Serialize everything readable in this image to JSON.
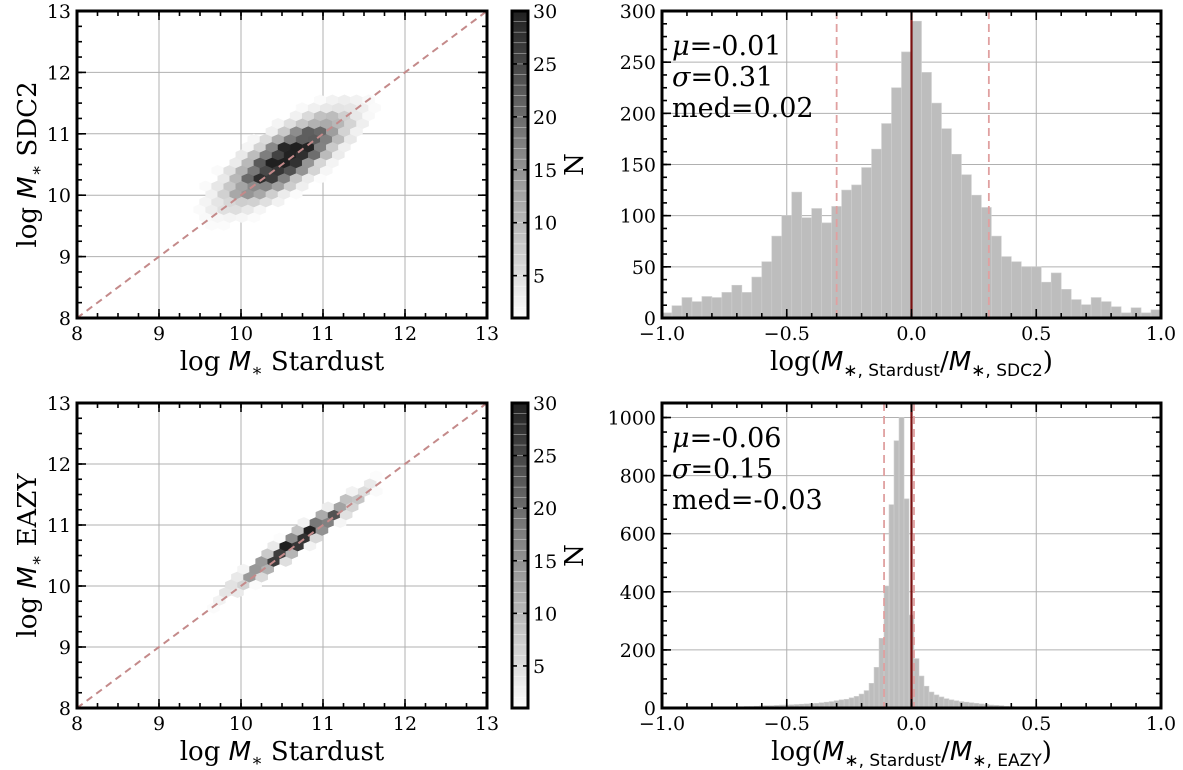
{
  "chart_data": [
    {
      "id": "tl",
      "type": "heatmap",
      "subtype": "hexbin",
      "xlabel": "log M_* Stardust",
      "ylabel": "log M_* SDC2",
      "xlim": [
        8,
        13
      ],
      "ylim": [
        8,
        13
      ],
      "xticks": [
        8,
        9,
        10,
        11,
        12,
        13
      ],
      "yticks": [
        8,
        9,
        10,
        11,
        12,
        13
      ],
      "grid": true,
      "one_to_one_line": {
        "color": "#c48a8a",
        "style": "dashed"
      },
      "cmap": "Greys",
      "clim": [
        1,
        30
      ],
      "colorbar": {
        "label": "N",
        "ticks": [
          5,
          10,
          15,
          20,
          25,
          30
        ]
      },
      "distribution": {
        "center": [
          10.55,
          10.6
        ],
        "major_dispersion": 0.55,
        "minor_dispersion": 0.2,
        "extent": {
          "x": [
            9.2,
            11.7
          ],
          "y": [
            9.0,
            11.6
          ]
        },
        "peak_count": 30
      }
    },
    {
      "id": "tr",
      "type": "bar",
      "subtype": "histogram",
      "xlabel": "log(M_{*, Stardust}/M_{*, SDC2})",
      "ylabel": "",
      "xlim": [
        -1.0,
        1.0
      ],
      "ylim": [
        0,
        300
      ],
      "xticks": [
        -1.0,
        -0.5,
        0.0,
        0.5,
        1.0
      ],
      "yticks": [
        0,
        50,
        100,
        150,
        200,
        250,
        300
      ],
      "grid": true,
      "bin_width": 0.04,
      "x": [
        -0.98,
        -0.94,
        -0.9,
        -0.86,
        -0.82,
        -0.78,
        -0.74,
        -0.7,
        -0.66,
        -0.62,
        -0.58,
        -0.54,
        -0.5,
        -0.46,
        -0.42,
        -0.38,
        -0.34,
        -0.3,
        -0.26,
        -0.22,
        -0.18,
        -0.14,
        -0.1,
        -0.06,
        -0.02,
        0.02,
        0.06,
        0.1,
        0.14,
        0.18,
        0.22,
        0.26,
        0.3,
        0.34,
        0.38,
        0.42,
        0.46,
        0.5,
        0.54,
        0.58,
        0.62,
        0.66,
        0.7,
        0.74,
        0.78,
        0.82,
        0.86,
        0.9,
        0.94,
        0.98
      ],
      "values": [
        5,
        12,
        20,
        16,
        21,
        20,
        25,
        32,
        25,
        40,
        55,
        80,
        100,
        123,
        98,
        107,
        93,
        109,
        125,
        130,
        147,
        165,
        190,
        225,
        260,
        290,
        240,
        210,
        185,
        160,
        140,
        120,
        108,
        80,
        60,
        55,
        50,
        50,
        35,
        44,
        28,
        18,
        13,
        20,
        16,
        11,
        5,
        10,
        5,
        8
      ],
      "bar_color": "#bdbdbd",
      "vlines": [
        {
          "x": 0.0,
          "color": "#7a1010",
          "style": "solid"
        },
        {
          "x": -0.3,
          "color": "#e0a0a0",
          "style": "dashed"
        },
        {
          "x": 0.31,
          "color": "#e0a0a0",
          "style": "dashed"
        }
      ],
      "annotations": [
        "μ=-0.01",
        "σ=0.31",
        "med=0.02"
      ]
    },
    {
      "id": "bl",
      "type": "heatmap",
      "subtype": "hexbin",
      "xlabel": "log M_* Stardust",
      "ylabel": "log M_* EAZY",
      "xlim": [
        8,
        13
      ],
      "ylim": [
        8,
        13
      ],
      "xticks": [
        8,
        9,
        10,
        11,
        12,
        13
      ],
      "yticks": [
        8,
        9,
        10,
        11,
        12,
        13
      ],
      "grid": true,
      "one_to_one_line": {
        "color": "#c48a8a",
        "style": "dashed"
      },
      "cmap": "Greys",
      "clim": [
        1,
        30
      ],
      "colorbar": {
        "label": "N",
        "ticks": [
          5,
          10,
          15,
          20,
          25,
          30
        ]
      },
      "distribution": {
        "center": [
          10.7,
          10.75
        ],
        "major_dispersion": 0.6,
        "minor_dispersion": 0.07,
        "extent": {
          "x": [
            9.0,
            11.7
          ],
          "y": [
            9.0,
            11.9
          ]
        },
        "peak_count": 30
      }
    },
    {
      "id": "br",
      "type": "bar",
      "subtype": "histogram",
      "xlabel": "log(M_{*, Stardust}/M_{*, EAZY})",
      "ylabel": "",
      "xlim": [
        -1.0,
        1.0
      ],
      "ylim": [
        0,
        1050
      ],
      "xticks": [
        -1.0,
        -0.5,
        0.0,
        0.5,
        1.0
      ],
      "yticks": [
        0,
        200,
        400,
        600,
        800,
        1000
      ],
      "grid": true,
      "bin_width": 0.02,
      "x": [
        -0.7,
        -0.68,
        -0.66,
        -0.64,
        -0.62,
        -0.6,
        -0.58,
        -0.56,
        -0.54,
        -0.52,
        -0.5,
        -0.48,
        -0.46,
        -0.44,
        -0.42,
        -0.4,
        -0.38,
        -0.36,
        -0.34,
        -0.32,
        -0.3,
        -0.28,
        -0.26,
        -0.24,
        -0.22,
        -0.2,
        -0.18,
        -0.16,
        -0.14,
        -0.12,
        -0.1,
        -0.08,
        -0.06,
        -0.04,
        -0.02,
        0.0,
        0.02,
        0.04,
        0.06,
        0.08,
        0.1,
        0.12,
        0.14,
        0.16,
        0.18,
        0.2,
        0.22,
        0.24,
        0.26,
        0.28,
        0.3,
        0.32,
        0.34,
        0.36,
        0.38,
        0.4,
        0.42,
        0.44,
        0.46
      ],
      "values": [
        3,
        4,
        5,
        5,
        6,
        7,
        8,
        8,
        9,
        10,
        10,
        11,
        12,
        13,
        14,
        15,
        16,
        18,
        20,
        22,
        25,
        28,
        30,
        35,
        40,
        48,
        60,
        85,
        140,
        240,
        420,
        700,
        920,
        1000,
        720,
        320,
        170,
        110,
        75,
        55,
        45,
        38,
        32,
        28,
        25,
        22,
        20,
        18,
        16,
        14,
        12,
        10,
        9,
        8,
        6,
        5,
        4,
        3,
        2
      ],
      "bar_color": "#bdbdbd",
      "vlines": [
        {
          "x": 0.0,
          "color": "#7a1010",
          "style": "solid"
        },
        {
          "x": -0.11,
          "color": "#e0a0a0",
          "style": "dashed"
        },
        {
          "x": 0.01,
          "color": "#e0a0a0",
          "style": "dashed"
        }
      ],
      "annotations": [
        "μ=-0.06",
        "σ=0.15",
        "med=-0.03"
      ]
    }
  ]
}
